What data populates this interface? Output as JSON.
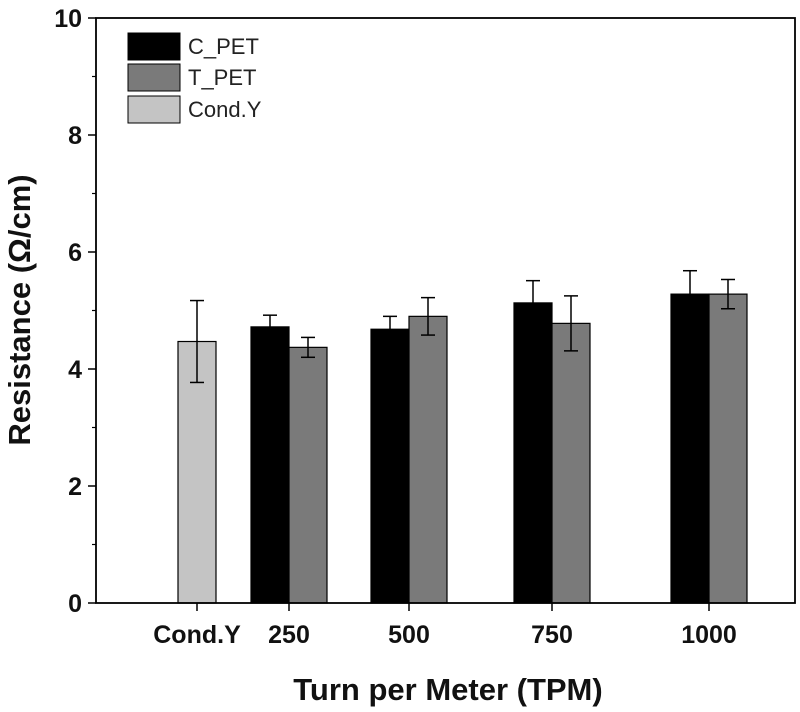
{
  "chart_data": {
    "type": "bar",
    "xlabel": "Turn per Meter (TPM)",
    "ylabel": "Resistance (Ω/cm)",
    "categories": [
      "Cond.Y",
      "250",
      "500",
      "750",
      "1000"
    ],
    "ylim": [
      0,
      10
    ],
    "yticks": [
      "0",
      "2",
      "4",
      "6",
      "8",
      "10"
    ],
    "grid": false,
    "legend_position": "top-left",
    "series": [
      {
        "name": "C_PET",
        "color": "#000000",
        "values": [
          null,
          4.72,
          4.68,
          5.13,
          5.28
        ],
        "errors": [
          null,
          0.2,
          0.22,
          0.38,
          0.4
        ]
      },
      {
        "name": "T_PET",
        "color": "#7a7a7a",
        "values": [
          null,
          4.37,
          4.9,
          4.78,
          5.28
        ],
        "errors": [
          null,
          0.17,
          0.32,
          0.47,
          0.25
        ]
      },
      {
        "name": "Cond.Y",
        "color": "#c4c4c4",
        "values": [
          4.47,
          null,
          null,
          null,
          null
        ],
        "errors": [
          0.7,
          null,
          null,
          null,
          null
        ]
      }
    ]
  }
}
